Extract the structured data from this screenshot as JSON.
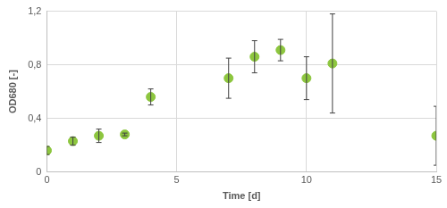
{
  "chart_data": {
    "type": "scatter",
    "x_label": "Time [d]",
    "y_label": "OD680 [-]",
    "x": [
      0,
      1,
      2,
      3,
      4,
      7,
      8,
      9,
      10,
      11,
      15
    ],
    "values": [
      0.16,
      0.23,
      0.27,
      0.28,
      0.56,
      0.7,
      0.86,
      0.91,
      0.7,
      0.81,
      0.27
    ],
    "errors": [
      0.03,
      0.03,
      0.05,
      0.01,
      0.06,
      0.15,
      0.12,
      0.08,
      0.16,
      0.37,
      0.22
    ],
    "color": "#8dc63f",
    "marker": "circle",
    "xlim": [
      0,
      15
    ],
    "xticks": [
      0,
      5,
      10,
      15
    ],
    "ylim": [
      0,
      1.2
    ],
    "yticks": [
      0,
      {
        "value": 0.4,
        "label": "0,4"
      },
      {
        "value": 0.8,
        "label": "0,8"
      },
      {
        "value": 1.2,
        "label": "1,2"
      }
    ],
    "grid": true
  }
}
